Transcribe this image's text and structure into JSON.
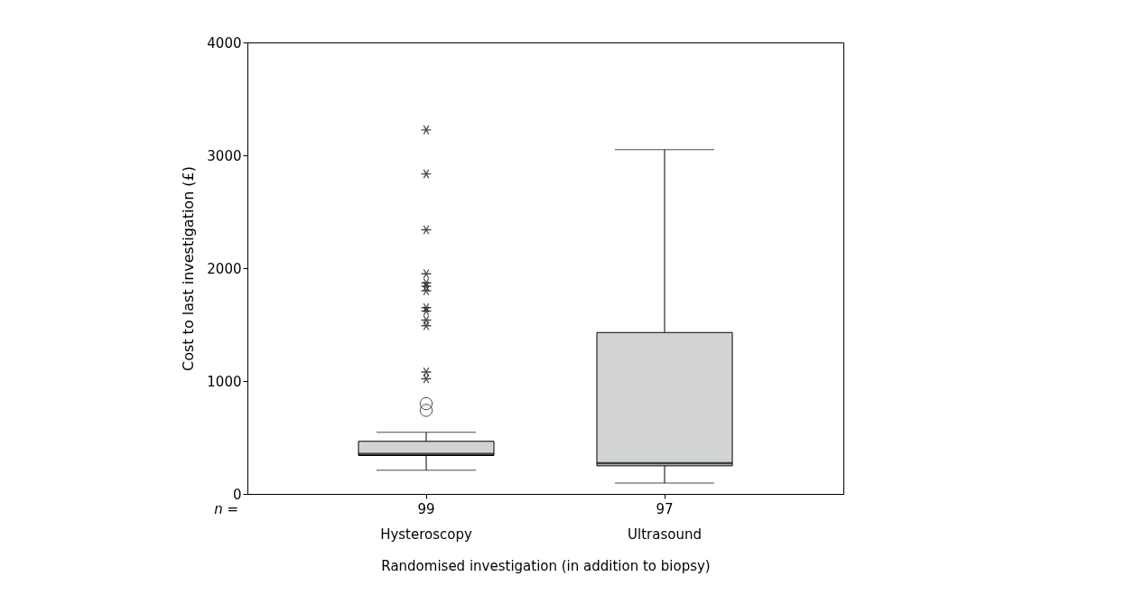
{
  "chart_data": {
    "type": "box",
    "xlabel": "Randomised investigation (in addition to biopsy)",
    "ylabel": "Cost to last investigation (£)",
    "categories": [
      "Hysteroscopy",
      "Ultrasound"
    ],
    "boxes": [
      {
        "low": 210,
        "q1": 340,
        "median": 355,
        "q3": 466,
        "high": 546,
        "outliers": [
          740,
          800,
          1020,
          1080,
          1490,
          1540,
          1620,
          1650,
          1800,
          1840,
          1870,
          1950,
          2340,
          2835,
          3225
        ]
      },
      {
        "low": 96,
        "q1": 249,
        "median": 273,
        "q3": 1430,
        "high": 3050
      }
    ],
    "colors": [
      "#d1d3d4",
      "#d1d3d4"
    ],
    "ylim": [
      0,
      4000
    ],
    "yticks": [
      0,
      1000,
      2000,
      3000,
      4000
    ],
    "grid": false,
    "annotations": [
      "n =",
      "99",
      "97"
    ]
  }
}
